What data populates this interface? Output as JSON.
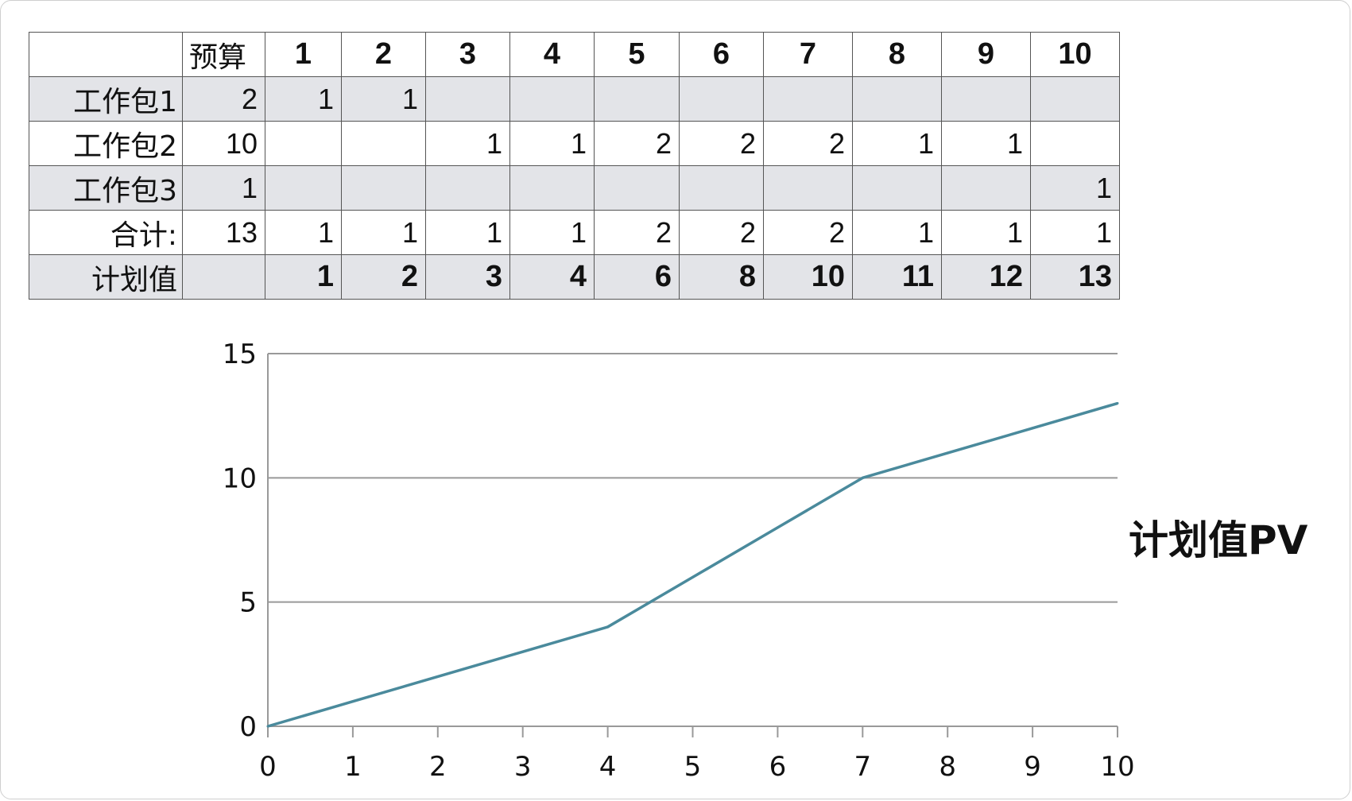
{
  "table": {
    "header": [
      "",
      "预算",
      "1",
      "2",
      "3",
      "4",
      "5",
      "6",
      "7",
      "8",
      "9",
      "10"
    ],
    "rows": [
      {
        "label": "工作包1",
        "budget": "2",
        "cells": [
          "1",
          "1",
          "",
          "",
          "",
          "",
          "",
          "",
          "",
          ""
        ],
        "shaded": true,
        "bold": false
      },
      {
        "label": "工作包2",
        "budget": "10",
        "cells": [
          "",
          "",
          "1",
          "1",
          "2",
          "2",
          "2",
          "1",
          "1",
          ""
        ],
        "shaded": false,
        "bold": false
      },
      {
        "label": "工作包3",
        "budget": "1",
        "cells": [
          "",
          "",
          "",
          "",
          "",
          "",
          "",
          "",
          "",
          "1"
        ],
        "shaded": true,
        "bold": false
      },
      {
        "label": "合计:",
        "budget": "13",
        "cells": [
          "1",
          "1",
          "1",
          "1",
          "2",
          "2",
          "2",
          "1",
          "1",
          "1"
        ],
        "shaded": false,
        "bold": false
      },
      {
        "label": "计划值",
        "budget": "",
        "cells": [
          "1",
          "2",
          "3",
          "4",
          "6",
          "8",
          "10",
          "11",
          "12",
          "13"
        ],
        "shaded": true,
        "bold": true
      }
    ]
  },
  "chart_data": {
    "type": "line",
    "title": "计划值PV",
    "xlabel": "",
    "ylabel": "",
    "x": [
      0,
      1,
      2,
      3,
      4,
      5,
      6,
      7,
      8,
      9,
      10
    ],
    "series": [
      {
        "values": [
          0,
          1,
          2,
          3,
          4,
          6,
          8,
          10,
          11,
          12,
          13
        ],
        "color": "#4a8a9c"
      }
    ],
    "xlim": [
      0,
      10
    ],
    "ylim": [
      0,
      15
    ],
    "x_ticks": [
      "0",
      "1",
      "2",
      "3",
      "4",
      "5",
      "6",
      "7",
      "8",
      "9",
      "10"
    ],
    "y_ticks": [
      "0",
      "5",
      "10",
      "15"
    ],
    "grid": "horizontal",
    "axis_color": "#999999"
  }
}
